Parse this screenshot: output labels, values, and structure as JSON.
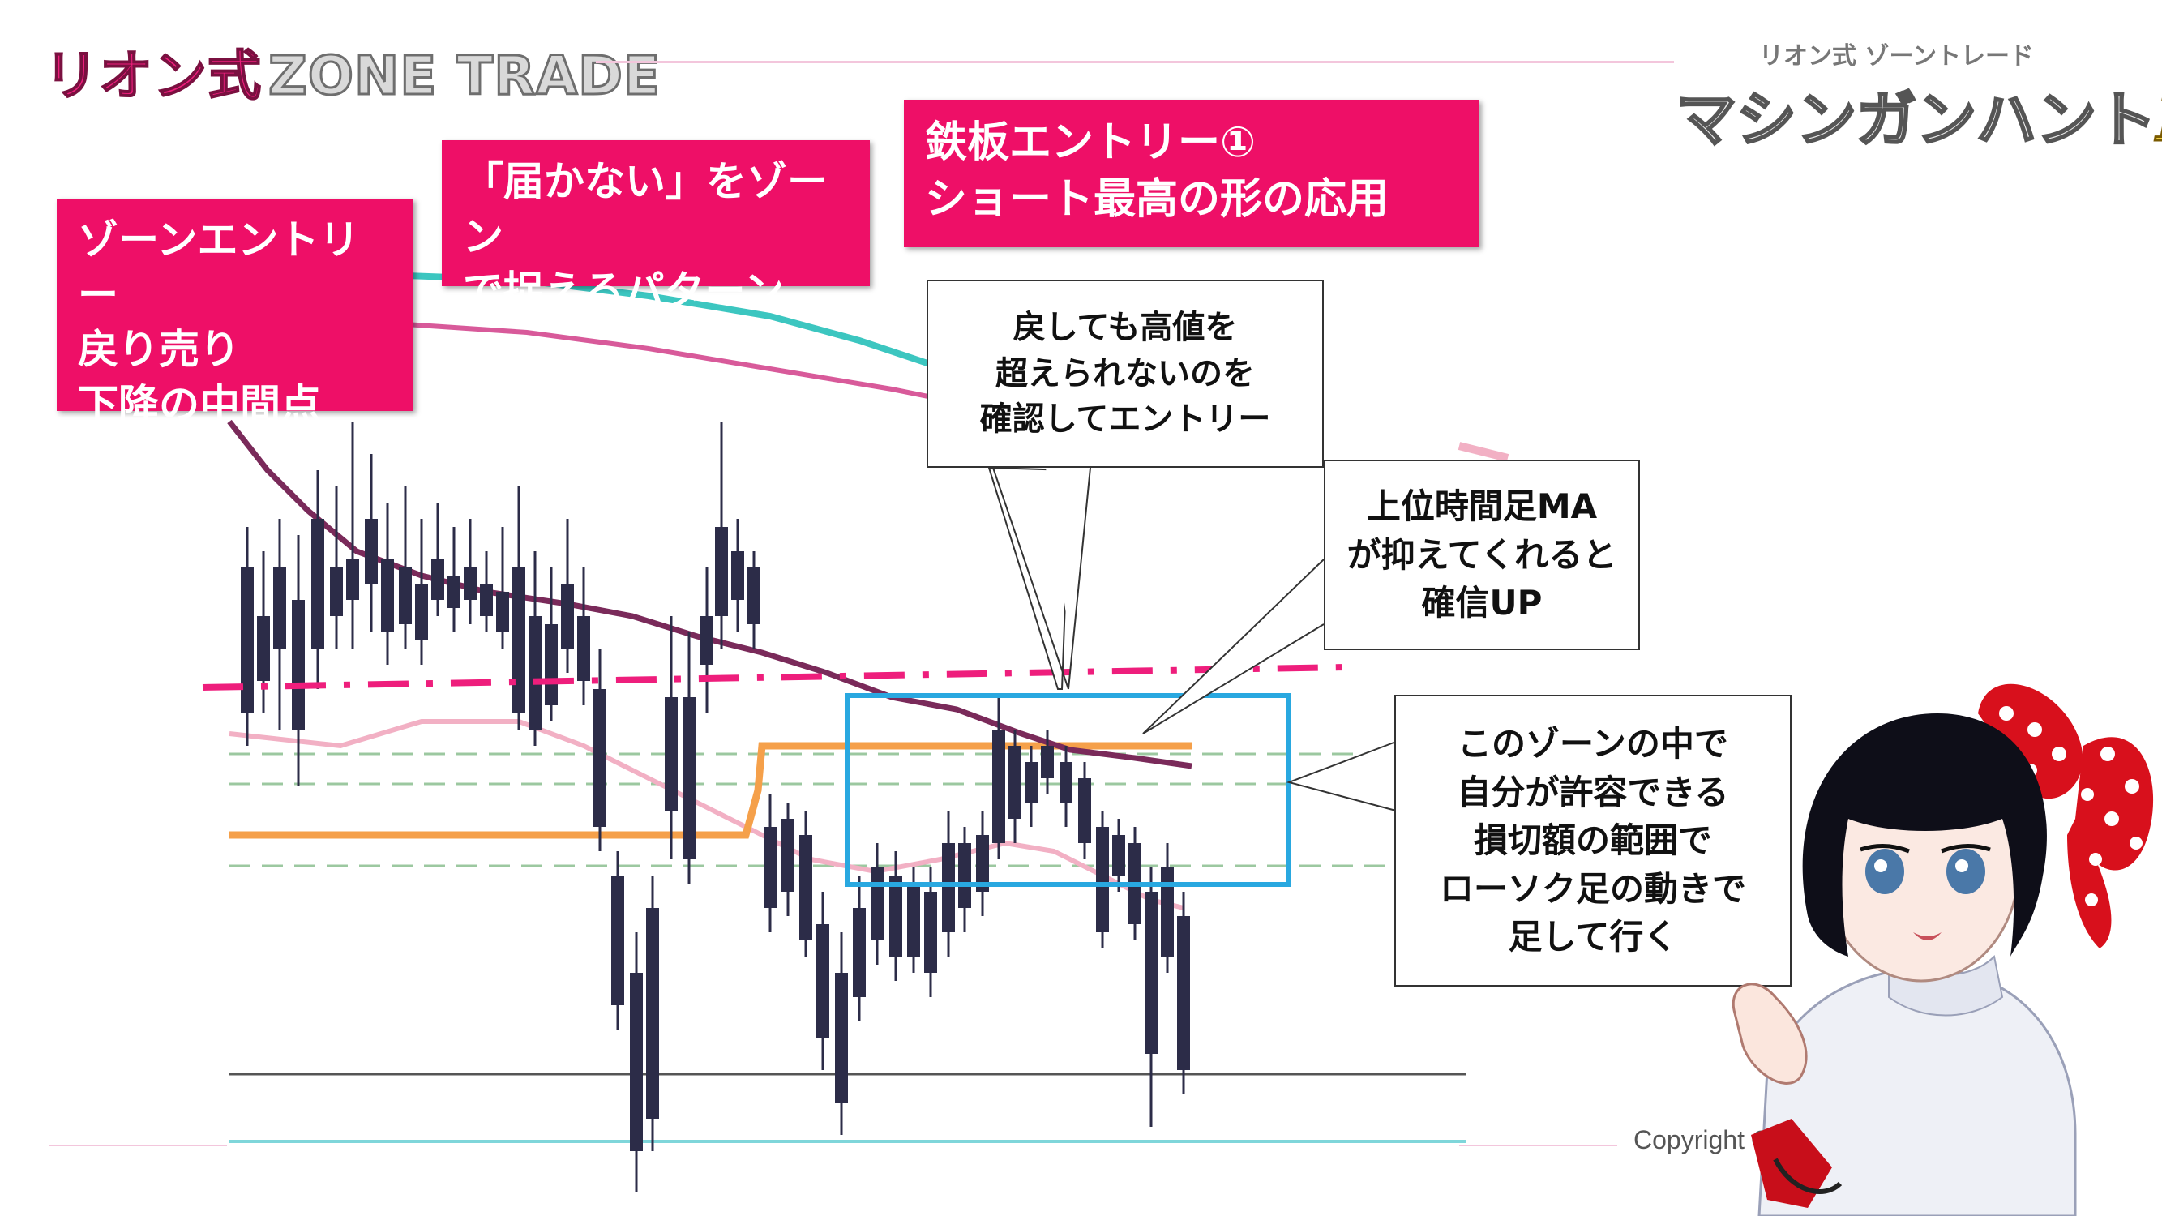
{
  "header": {
    "logo_jp": "リオン式",
    "logo_en": "ZONE TRADE",
    "brand_sub": "リオン式 ゾーントレード",
    "brand_main": "マシンガンハント",
    "brand_fx": "FX"
  },
  "labels": {
    "box1": "ゾーンエントリー\n戻り売り\n下降の中間点",
    "box2": "「届かない」をゾーン\nで捉えるパターン",
    "box3": "鉄板エントリー①\nショート最高の形の応用"
  },
  "callouts": {
    "c1": "戻しても高値を\n超えられないのを\n確認してエントリー",
    "c2": "上位時間足MA\nが抑えてくれると\n確信UP",
    "c3": "このゾーンの中で\n自分が許容できる\n損切額の範囲で\nローソク足の動きで\n足して行く"
  },
  "footer": {
    "copyright": "Copyright © All rights reserved."
  },
  "colors": {
    "accent_pink": "#ee0f67",
    "zone_box": "#29a8e0",
    "ma_purple": "#7a2a5a",
    "ma_orange": "#f5a04a",
    "ma_teal": "#3cc6c0",
    "ma_pink": "#d85a9a",
    "candle_dark": "#2c2c48",
    "dash_line": "#ee1e7c"
  },
  "icons": {
    "character": "anime-girl-mascot-icon",
    "bow": "polka-dot-bow-icon"
  }
}
